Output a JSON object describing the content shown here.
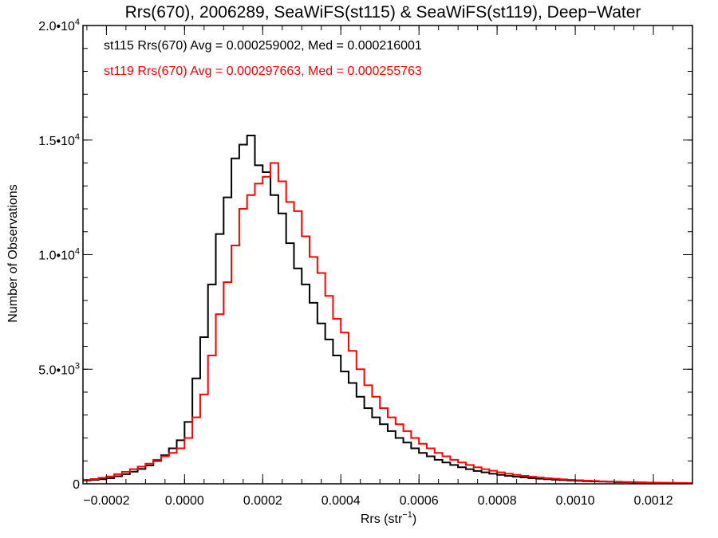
{
  "chart_data": {
    "type": "histogram",
    "title": "Rrs(670), 2006289, SeaWiFS(st115) & SeaWiFS(st119), Deep−Water",
    "xlabel": "Rrs (str",
    "xlabel_sup": "−1",
    "xlabel_close": ")",
    "ylabel": "Number of Observations",
    "xlim": [
      -0.00026,
      0.0013
    ],
    "ylim": [
      0,
      20000
    ],
    "grid": false,
    "x_ticks": [
      -0.0002,
      0.0,
      0.0002,
      0.0004,
      0.0006,
      0.0008,
      0.001,
      0.0012
    ],
    "x_tick_labels": [
      "−0.0002",
      "0.0000",
      "0.0002",
      "0.0004",
      "0.0006",
      "0.0008",
      "0.0010",
      "0.0012"
    ],
    "x_minor_step": 5e-05,
    "y_ticks": [
      0,
      5000,
      10000,
      15000,
      20000
    ],
    "y_tick_labels": [
      {
        "mant": "0",
        "exp": ""
      },
      {
        "mant": "5.0•10",
        "exp": "3"
      },
      {
        "mant": "1.0•10",
        "exp": "4"
      },
      {
        "mant": "1.5•10",
        "exp": "4"
      },
      {
        "mant": "2.0•10",
        "exp": "4"
      }
    ],
    "y_minor_step": 1000,
    "bin_start": -0.00026,
    "bin_width": 2e-05,
    "series": [
      {
        "name": "st115",
        "color": "#000000",
        "annotation": "st115 Rrs(670) Avg = 0.000259002, Med = 0.000216001",
        "values": [
          150,
          170,
          200,
          250,
          330,
          420,
          530,
          650,
          800,
          1000,
          1250,
          1550,
          1900,
          2700,
          4600,
          6400,
          8700,
          10900,
          12500,
          14200,
          14800,
          15200,
          13900,
          13600,
          12600,
          11800,
          10500,
          9400,
          8700,
          7900,
          7000,
          6300,
          5600,
          4900,
          4400,
          3800,
          3300,
          2900,
          2600,
          2300,
          2000,
          1800,
          1550,
          1350,
          1200,
          1050,
          930,
          820,
          720,
          640,
          560,
          500,
          440,
          390,
          350,
          310,
          280,
          250,
          220,
          200,
          180,
          160,
          145,
          130,
          115,
          105,
          95,
          85,
          75,
          68,
          60,
          55,
          50,
          45,
          40,
          36,
          33,
          30
        ]
      },
      {
        "name": "st119",
        "color": "#ff0000",
        "annotation": "st119 Rrs(670) Avg = 0.000297663, Med = 0.000255763",
        "values": [
          180,
          210,
          260,
          320,
          420,
          520,
          640,
          750,
          880,
          1050,
          1200,
          1350,
          1550,
          2000,
          2900,
          3900,
          5600,
          7400,
          8800,
          10400,
          12000,
          12600,
          13100,
          13400,
          14000,
          13200,
          12300,
          11900,
          10800,
          9900,
          9200,
          8200,
          7200,
          6600,
          5800,
          5000,
          4300,
          3800,
          3300,
          2900,
          2600,
          2300,
          2000,
          1750,
          1550,
          1350,
          1200,
          1050,
          930,
          820,
          720,
          640,
          570,
          500,
          440,
          390,
          350,
          310,
          275,
          245,
          220,
          195,
          175,
          155,
          140,
          125,
          110,
          100,
          90,
          80,
          72,
          65,
          58,
          52,
          47,
          42,
          38,
          34
        ]
      }
    ]
  }
}
